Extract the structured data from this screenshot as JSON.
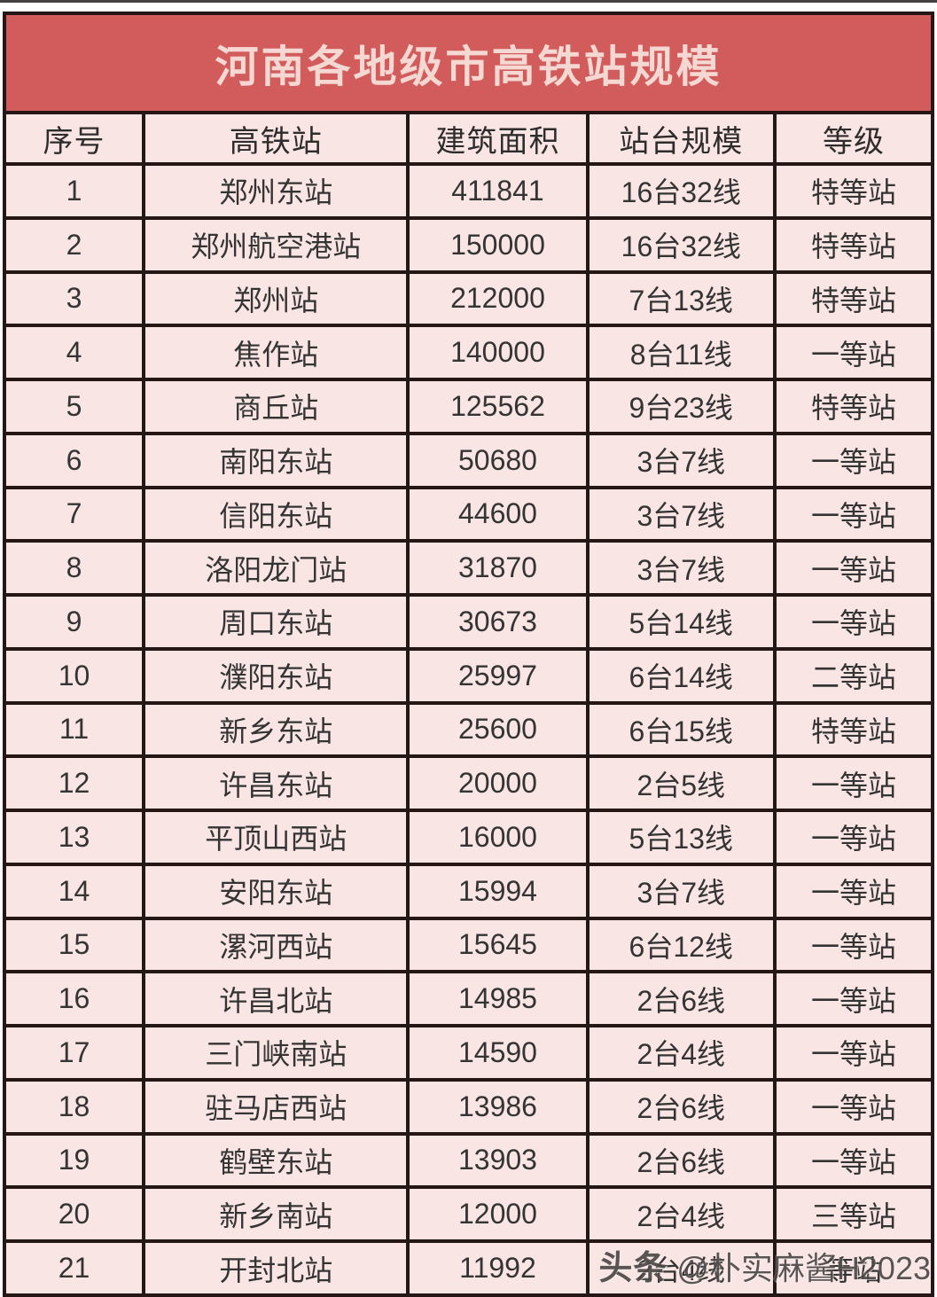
{
  "chart_data": {
    "type": "table",
    "title": "河南各地级市高铁站规模",
    "columns": [
      "序号",
      "高铁站",
      "建筑面积",
      "站台规模",
      "等级"
    ],
    "rows": [
      [
        "1",
        "郑州东站",
        "411841",
        "16台32线",
        "特等站"
      ],
      [
        "2",
        "郑州航空港站",
        "150000",
        "16台32线",
        "特等站"
      ],
      [
        "3",
        "郑州站",
        "212000",
        "7台13线",
        "特等站"
      ],
      [
        "4",
        "焦作站",
        "140000",
        "8台11线",
        "一等站"
      ],
      [
        "5",
        "商丘站",
        "125562",
        "9台23线",
        "特等站"
      ],
      [
        "6",
        "南阳东站",
        "50680",
        "3台7线",
        "一等站"
      ],
      [
        "7",
        "信阳东站",
        "44600",
        "3台7线",
        "一等站"
      ],
      [
        "8",
        "洛阳龙门站",
        "31870",
        "3台7线",
        "一等站"
      ],
      [
        "9",
        "周口东站",
        "30673",
        "5台14线",
        "一等站"
      ],
      [
        "10",
        "濮阳东站",
        "25997",
        "6台14线",
        "二等站"
      ],
      [
        "11",
        "新乡东站",
        "25600",
        "6台15线",
        "特等站"
      ],
      [
        "12",
        "许昌东站",
        "20000",
        "2台5线",
        "一等站"
      ],
      [
        "13",
        "平顶山西站",
        "16000",
        "5台13线",
        "一等站"
      ],
      [
        "14",
        "安阳东站",
        "15994",
        "3台7线",
        "一等站"
      ],
      [
        "15",
        "漯河西站",
        "15645",
        "6台12线",
        "一等站"
      ],
      [
        "16",
        "许昌北站",
        "14985",
        "2台6线",
        "一等站"
      ],
      [
        "17",
        "三门峡南站",
        "14590",
        "2台4线",
        "一等站"
      ],
      [
        "18",
        "驻马店西站",
        "13986",
        "2台6线",
        "一等站"
      ],
      [
        "19",
        "鹤壁东站",
        "13903",
        "2台6线",
        "一等站"
      ],
      [
        "20",
        "新乡南站",
        "12000",
        "2台4线",
        "三等站"
      ],
      [
        "21",
        "开封北站",
        "11992",
        "2台4线",
        "等站"
      ]
    ],
    "layout_hints": {
      "column_width_percent": [
        15,
        28.5,
        19.3,
        20.2,
        17
      ],
      "grid": "on"
    }
  },
  "watermark": {
    "brand": "头条",
    "handle": "@朴实麻酱H2023"
  },
  "colors": {
    "title_background": "#d25c5c",
    "title_text": "#f6d8d3",
    "cell_background": "#f9e5e3",
    "border": "#241716",
    "body_text": "#343434"
  }
}
